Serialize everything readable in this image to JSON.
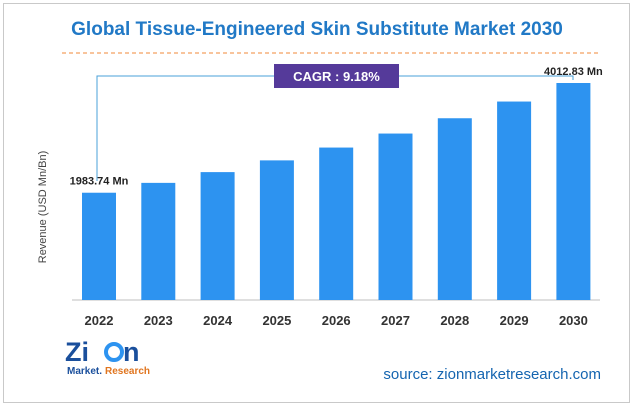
{
  "title": "Global Tissue-Engineered Skin Substitute Market 2030",
  "cagr_label": "CAGR : 9.18%",
  "source": "source: zionmarketresearch.com",
  "logo": {
    "word": "Zion",
    "sub": "Market.Research"
  },
  "colors": {
    "title": "#2179c6",
    "bar": "#2d93f0",
    "cagr_bg": "#553a9a",
    "line": "#4aa0d8",
    "divider": "#f08a3a",
    "source": "#1565b0"
  },
  "chart_data": {
    "type": "bar",
    "categories": [
      "2022",
      "2023",
      "2024",
      "2025",
      "2026",
      "2027",
      "2028",
      "2029",
      "2030"
    ],
    "values": [
      1983.74,
      2166,
      2365,
      2582,
      2819,
      3078,
      3361,
      3670,
      4012.83
    ],
    "data_labels": {
      "0": "1983.74 Mn",
      "8": "4012.83 Mn"
    },
    "title": "Global Tissue-Engineered Skin Substitute Market 2030",
    "xlabel": "",
    "ylabel": "Revenue (USD Mn/Bn)",
    "ylim": [
      0,
      4012.83
    ],
    "grid": false,
    "legend": "none"
  }
}
